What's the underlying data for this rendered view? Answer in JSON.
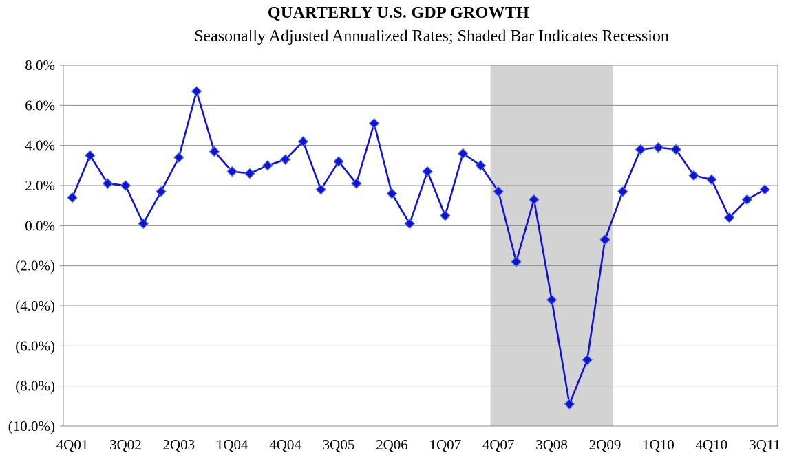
{
  "chart_data": {
    "type": "line",
    "title": "QUARTERLY U.S. GDP GROWTH",
    "subtitle": "Seasonally Adjusted Annualized Rates; Shaded Bar Indicates Recession",
    "xlabel": "",
    "ylabel": "",
    "ylim": [
      -10,
      8
    ],
    "y_ticks": [
      8,
      6,
      4,
      2,
      0,
      -2,
      -4,
      -6,
      -8,
      -10
    ],
    "y_tick_labels": [
      "8.0%",
      "6.0%",
      "4.0%",
      "2.0%",
      "0.0%",
      "(2.0%)",
      "(4.0%)",
      "(6.0%)",
      "(8.0%)",
      "(10.0%)"
    ],
    "x_tick_labels": [
      "4Q01",
      "3Q02",
      "2Q03",
      "1Q04",
      "4Q04",
      "3Q05",
      "2Q06",
      "1Q07",
      "4Q07",
      "3Q08",
      "2Q09",
      "1Q10",
      "4Q10",
      "3Q11"
    ],
    "categories": [
      "4Q01",
      "1Q02",
      "2Q02",
      "3Q02",
      "4Q02",
      "1Q03",
      "2Q03",
      "3Q03",
      "4Q03",
      "1Q04",
      "2Q04",
      "3Q04",
      "4Q04",
      "1Q05",
      "2Q05",
      "3Q05",
      "4Q05",
      "1Q06",
      "2Q06",
      "3Q06",
      "4Q06",
      "1Q07",
      "2Q07",
      "3Q07",
      "4Q07",
      "1Q08",
      "2Q08",
      "3Q08",
      "4Q08",
      "1Q09",
      "2Q09",
      "3Q09",
      "4Q09",
      "1Q10",
      "2Q10",
      "3Q10",
      "4Q10",
      "1Q11",
      "2Q11",
      "3Q11"
    ],
    "series": [
      {
        "values": [
          1.4,
          3.5,
          2.1,
          2.0,
          0.1,
          1.7,
          3.4,
          6.7,
          3.7,
          2.7,
          2.6,
          3.0,
          3.3,
          4.2,
          1.8,
          3.2,
          2.1,
          5.1,
          1.6,
          0.1,
          2.7,
          0.5,
          3.6,
          3.0,
          1.7,
          -1.8,
          1.3,
          -3.7,
          -8.9,
          -6.7,
          -0.7,
          1.7,
          3.8,
          3.9,
          3.8,
          2.5,
          2.3,
          0.4,
          1.3,
          1.8
        ],
        "color": "#1212d6",
        "marker": "diamond"
      }
    ],
    "recession_shading": {
      "start": "4Q07",
      "end": "2Q09",
      "color": "#d3d3d3"
    },
    "grid": true,
    "gridline_color": "#8c8c8c"
  }
}
